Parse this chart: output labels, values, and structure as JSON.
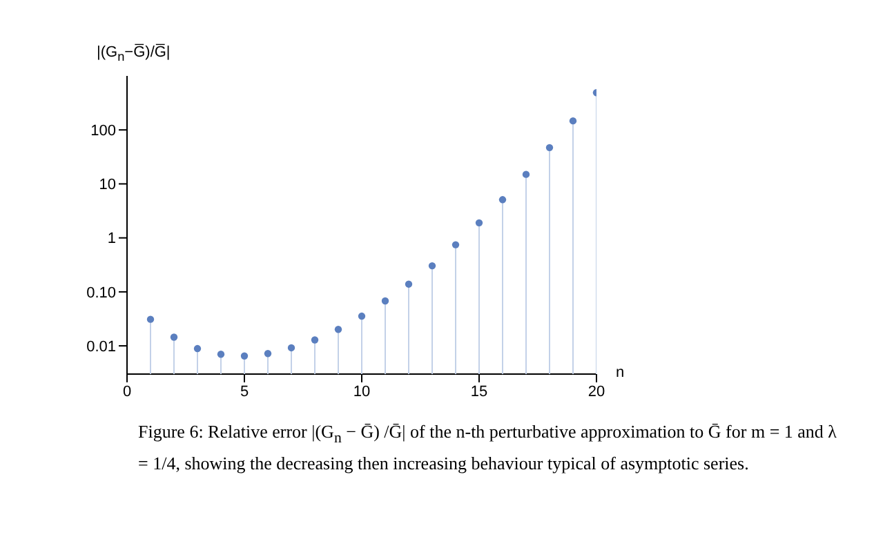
{
  "chart_data": {
    "type": "lollipop",
    "ylabel": "|(G$_{n}$−G̅)/G̅|",
    "xlabel": "n",
    "annotations": [
      "Figure 6: Relative error |(G$_{n}$ − Ḡ) /Ḡ| of the n-th perturbative approximation to Ḡ for m = 1 and λ = 1/4, showing the decreasing then increasing behaviour typical of asymptotic series."
    ],
    "x": [
      1,
      2,
      3,
      4,
      5,
      6,
      7,
      8,
      9,
      10,
      11,
      12,
      13,
      14,
      15,
      16,
      17,
      18,
      19,
      20
    ],
    "series": [
      {
        "color": "#5b7fbf",
        "values": [
          0.031,
          0.0145,
          0.0089,
          0.007,
          0.0065,
          0.0072,
          0.0092,
          0.0129,
          0.0202,
          0.0355,
          0.068,
          0.139,
          0.304,
          0.746,
          1.9,
          5.1,
          15,
          47,
          147,
          490
        ]
      }
    ],
    "log": "y",
    "xlim": [
      0,
      20
    ],
    "xticks": [
      0,
      5,
      10,
      15,
      20
    ],
    "ylim": [
      0.003,
      1000
    ],
    "yticks": [
      0.01,
      {
        "value": 0.1,
        "label": "0.10"
      },
      1,
      10,
      100
    ],
    "marker": "circle"
  }
}
